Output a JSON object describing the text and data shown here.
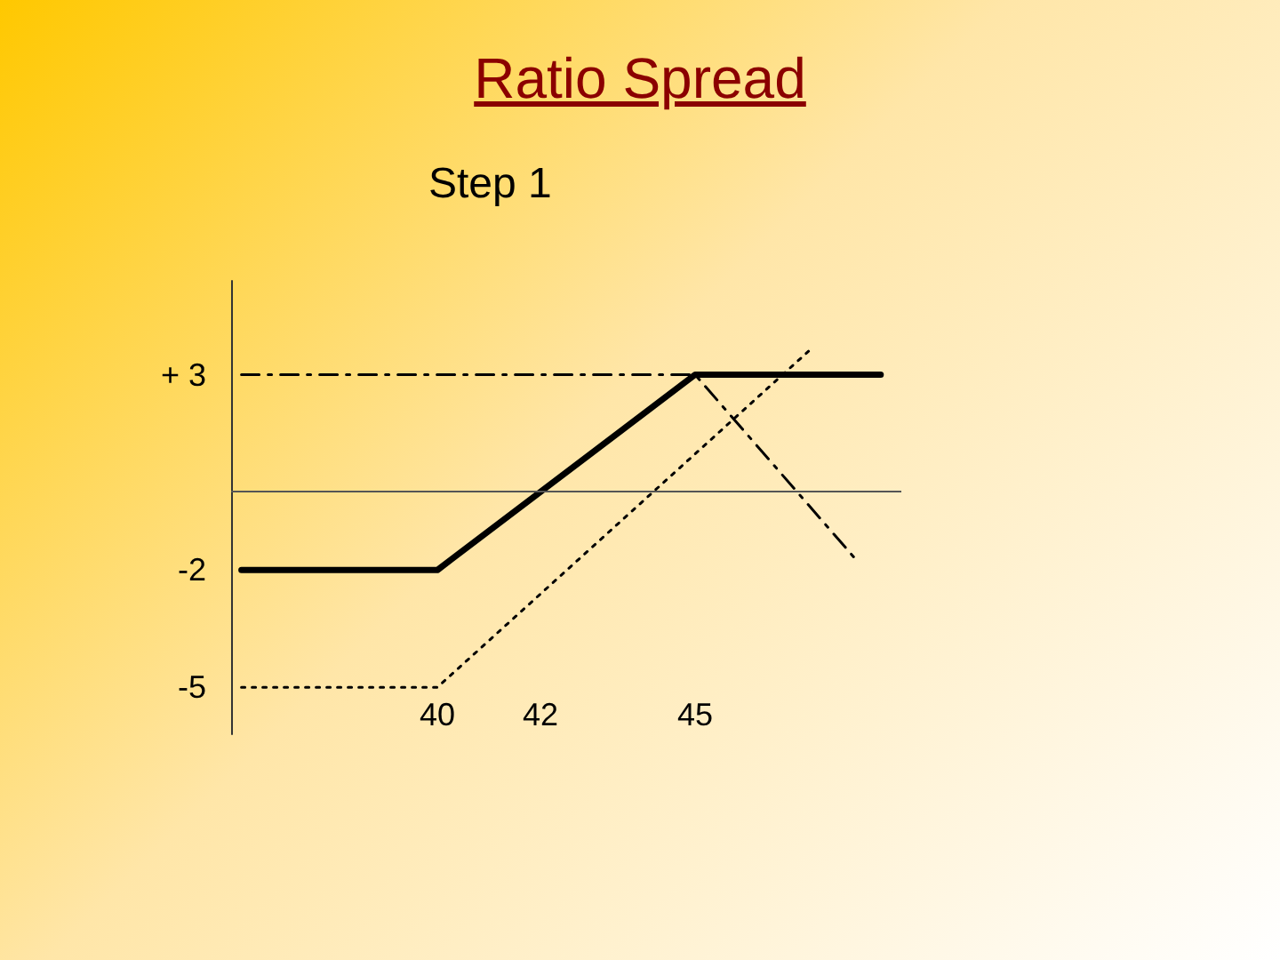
{
  "chart_data": {
    "type": "line",
    "title": "Ratio Spread",
    "subtitle": "Step 1",
    "series": [
      {
        "x": [
          36.2,
          40,
          45,
          48.6
        ],
        "values": [
          -2,
          -2,
          3,
          3
        ],
        "color": "#000000",
        "line_style": "solid"
      },
      {
        "x": [
          36.2,
          40,
          47.2
        ],
        "values": [
          -5,
          -5,
          3.6
        ],
        "color": "#000000",
        "line_style": "dotted"
      },
      {
        "x": [
          36.2,
          45,
          48.1
        ],
        "values": [
          3,
          3,
          -1.7
        ],
        "color": "#000000",
        "line_style": "dashed"
      }
    ],
    "xlim": [
      36,
      49
    ],
    "xticks": [
      40,
      42,
      45
    ],
    "ylim": [
      -6.2,
      5.4
    ],
    "yticks": [
      {
        "value": 3,
        "label": "+ 3"
      },
      -2,
      -5
    ],
    "ref_lines": [
      {
        "axis": "y",
        "value": 0,
        "label": null,
        "color": "#555555"
      }
    ],
    "marker": "none"
  }
}
